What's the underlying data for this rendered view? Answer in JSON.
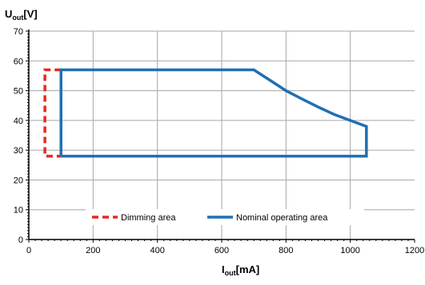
{
  "chart_data": {
    "type": "line",
    "ylabel_main": "U",
    "ylabel_sub": "out",
    "ylabel_unit": "[V]",
    "xlabel_main": "I",
    "xlabel_sub": "out",
    "xlabel_unit": "[mA]",
    "xlim": [
      0,
      1200
    ],
    "ylim": [
      0,
      70
    ],
    "x_ticks": [
      0,
      200,
      400,
      600,
      800,
      1000,
      1200
    ],
    "x_tick_labels": [
      "0",
      "200",
      "400",
      "600",
      "800",
      "1000",
      "1200"
    ],
    "y_ticks": [
      0,
      10,
      20,
      30,
      40,
      50,
      60,
      70
    ],
    "y_tick_labels": [
      "0",
      "10",
      "20",
      "30",
      "40",
      "50",
      "60",
      "70"
    ],
    "grid": true,
    "legend_placement": "bottom-center",
    "series": [
      {
        "name": "Dimming area",
        "color": "#e8281e",
        "dash": true,
        "points": [
          [
            100,
            57
          ],
          [
            50,
            57
          ],
          [
            50,
            28
          ],
          [
            100,
            28
          ]
        ]
      },
      {
        "name": "Nominal operating area",
        "color": "#1f6fb4",
        "dash": false,
        "points": [
          [
            100,
            28
          ],
          [
            100,
            57
          ],
          [
            700,
            57
          ],
          [
            750,
            53.5
          ],
          [
            800,
            50
          ],
          [
            850,
            47.2
          ],
          [
            900,
            44.5
          ],
          [
            950,
            42
          ],
          [
            1000,
            40
          ],
          [
            1050,
            38
          ],
          [
            1050,
            28
          ],
          [
            100,
            28
          ]
        ]
      }
    ]
  }
}
